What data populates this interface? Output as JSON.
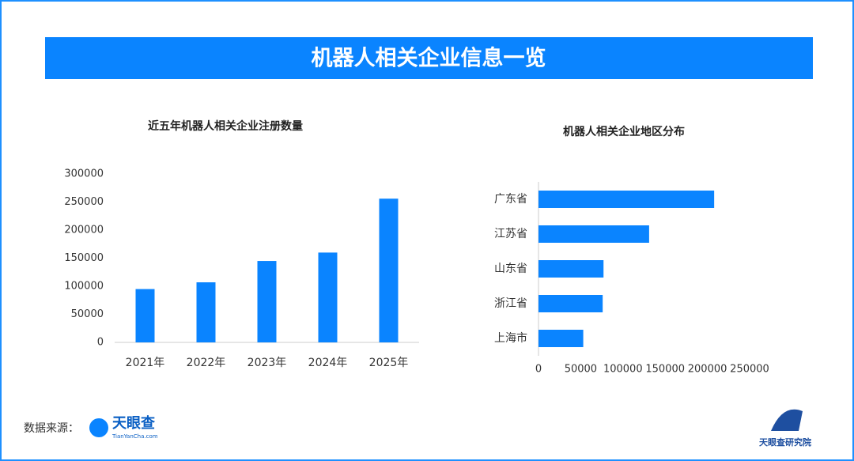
{
  "header": {
    "title": "机器人相关企业信息一览"
  },
  "chart_data": [
    {
      "type": "bar",
      "title": "近五年机器人相关企业注册数量",
      "categories": [
        "2021年",
        "2022年",
        "2023年",
        "2024年",
        "2025年"
      ],
      "values": [
        95000,
        107000,
        145000,
        160000,
        256000
      ],
      "color": "#0a84ff",
      "ylim": [
        0,
        300000
      ],
      "yticks": [
        0,
        50000,
        100000,
        150000,
        200000,
        250000,
        300000
      ]
    },
    {
      "type": "barh",
      "title": "机器人相关企业地区分布",
      "categories": [
        "广东省",
        "江苏省",
        "山东省",
        "浙江省",
        "上海市"
      ],
      "values": [
        208000,
        131000,
        77000,
        76000,
        53000
      ],
      "color": "#0a84ff",
      "xlim": [
        0,
        250000
      ],
      "xticks": [
        0,
        50000,
        100000,
        150000,
        200000,
        250000
      ]
    }
  ],
  "footer": {
    "source_label": "数据来源：",
    "logo_text": "天眼查",
    "logo_url": "TianYanCha.com",
    "institute": "天眼查研究院"
  }
}
